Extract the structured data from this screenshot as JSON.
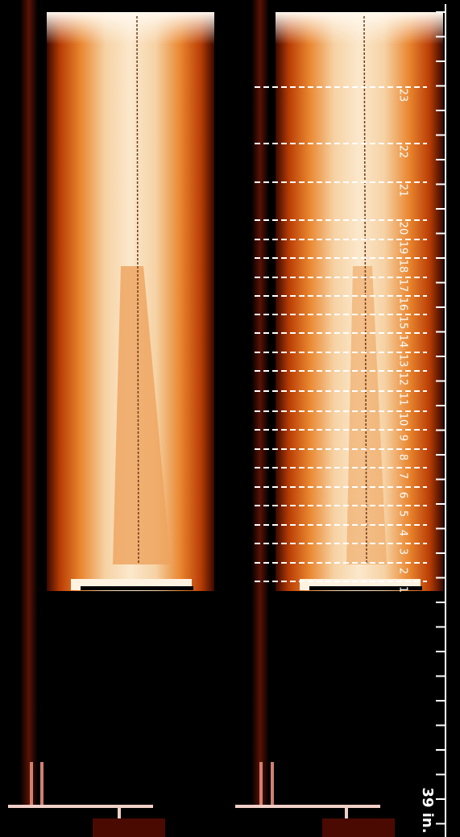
{
  "level_labels": [
    "23",
    "22",
    "21",
    "20",
    "19",
    "18",
    "17",
    "16",
    "15",
    "14",
    "13",
    "12",
    "11",
    "10",
    "9",
    "8",
    "7",
    "6",
    "5",
    "4",
    "3",
    "2",
    "1"
  ],
  "scale_label": "39 in."
}
